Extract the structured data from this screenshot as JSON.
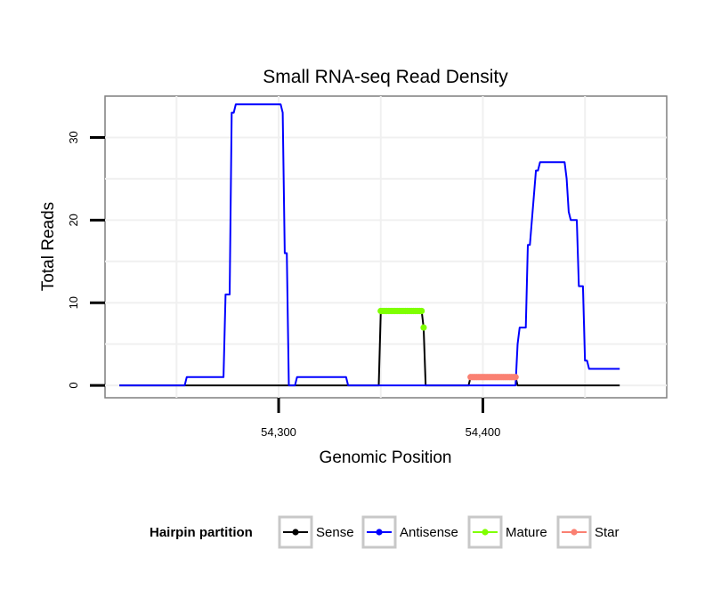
{
  "chart_data": {
    "type": "line",
    "title": "Small RNA-seq Read Density",
    "xlabel": "Genomic Position",
    "ylabel": "Total Reads",
    "xlim": [
      54215,
      54490
    ],
    "ylim": [
      -1.5,
      35
    ],
    "x_ticks": [
      54300,
      54400
    ],
    "x_tick_labels": [
      "54,300",
      "54,400"
    ],
    "y_ticks": [
      0,
      10,
      20,
      30
    ],
    "y_tick_labels": [
      "0",
      "10",
      "20",
      "30"
    ],
    "grid": true,
    "legend": {
      "title": "Hairpin partition",
      "position": "bottom",
      "entries": [
        "Sense",
        "Antisense",
        "Mature",
        "Star"
      ]
    },
    "colors": {
      "Sense": "#000000",
      "Antisense": "#0000ff",
      "Mature": "#7fff00",
      "Star": "#fa8072"
    },
    "series": [
      {
        "name": "Sense",
        "type": "line",
        "x": [
          54222,
          54349,
          54350,
          54370,
          54371,
          54372,
          54393,
          54394,
          54416,
          54417,
          54467
        ],
        "y": [
          0,
          0,
          9,
          9,
          7,
          0,
          0,
          1,
          1,
          0,
          0
        ]
      },
      {
        "name": "Antisense",
        "type": "line",
        "x": [
          54222,
          54254,
          54255,
          54273,
          54274,
          54276,
          54277,
          54278,
          54279,
          54301,
          54302,
          54303,
          54304,
          54305,
          54308,
          54309,
          54310,
          54333,
          54334,
          54336,
          54416,
          54417,
          54418,
          54419,
          54421,
          54422,
          54423,
          54426,
          54427,
          54428,
          54440,
          54441,
          54442,
          54443,
          54444,
          54446,
          54447,
          54449,
          54450,
          54451,
          54452,
          54453,
          54467
        ],
        "y": [
          0,
          0,
          1,
          1,
          11,
          11,
          33,
          33,
          34,
          34,
          33,
          16,
          16,
          0,
          0,
          1,
          1,
          1,
          0,
          0,
          0,
          5,
          7,
          7,
          7,
          17,
          17,
          26,
          26,
          27,
          27,
          25,
          21,
          20,
          20,
          20,
          12,
          12,
          3,
          3,
          2,
          2,
          2
        ]
      },
      {
        "name": "Mature",
        "type": "points",
        "x": [
          54350,
          54351,
          54352,
          54353,
          54354,
          54355,
          54356,
          54357,
          54358,
          54359,
          54360,
          54361,
          54362,
          54363,
          54364,
          54365,
          54366,
          54367,
          54368,
          54369,
          54370,
          54371
        ],
        "y": [
          9,
          9,
          9,
          9,
          9,
          9,
          9,
          9,
          9,
          9,
          9,
          9,
          9,
          9,
          9,
          9,
          9,
          9,
          9,
          9,
          9,
          7
        ]
      },
      {
        "name": "Star",
        "type": "points",
        "x": [
          54394,
          54395,
          54396,
          54397,
          54398,
          54399,
          54400,
          54401,
          54402,
          54403,
          54404,
          54405,
          54406,
          54407,
          54408,
          54409,
          54410,
          54411,
          54412,
          54413,
          54414,
          54415,
          54416
        ],
        "y": [
          1,
          1,
          1,
          1,
          1,
          1,
          1,
          1,
          1,
          1,
          1,
          1,
          1,
          1,
          1,
          1,
          1,
          1,
          1,
          1,
          1,
          1,
          1
        ]
      }
    ]
  }
}
